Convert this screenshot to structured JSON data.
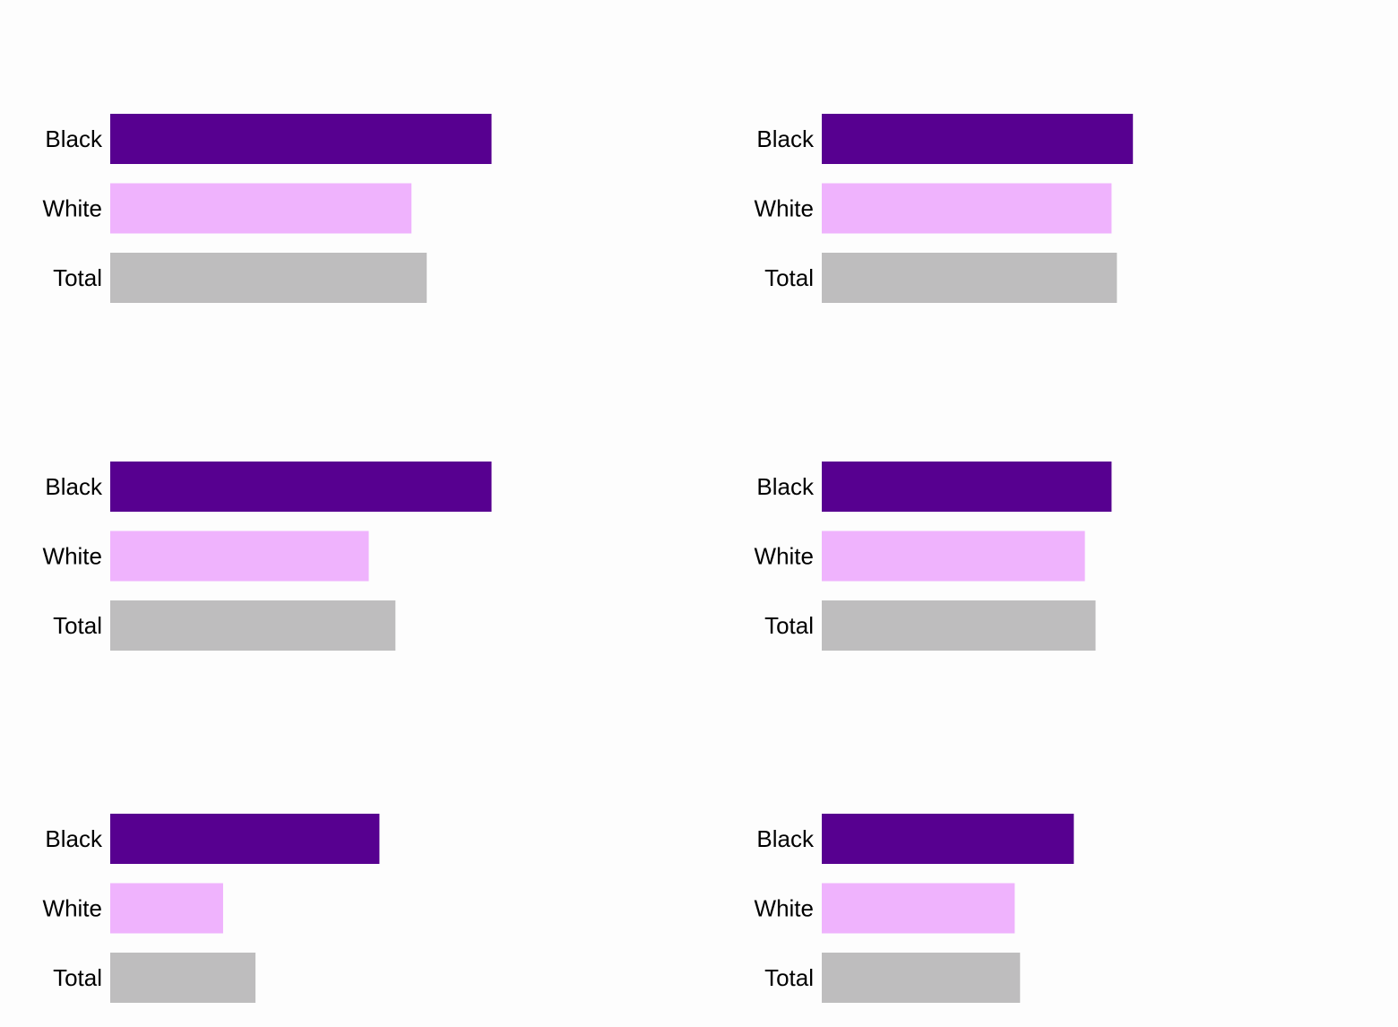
{
  "colors": {
    "background": "#fdfdfd",
    "Black": "#570090",
    "White": "#efb3fd",
    "Total": "#bebdbe"
  },
  "chart_data": [
    {
      "type": "bar",
      "orientation": "horizontal",
      "categories": [
        "Black",
        "White",
        "Total"
      ],
      "values": [
        100,
        79,
        83
      ],
      "xlim": [
        0,
        100
      ],
      "grid": false,
      "legend": "none"
    },
    {
      "type": "bar",
      "orientation": "horizontal",
      "categories": [
        "Black",
        "White",
        "Total"
      ],
      "values": [
        81.6,
        76,
        77.4
      ],
      "xlim": [
        0,
        100
      ],
      "grid": false,
      "legend": "none"
    },
    {
      "type": "bar",
      "orientation": "horizontal",
      "categories": [
        "Black",
        "White",
        "Total"
      ],
      "values": [
        100,
        67.8,
        74.8
      ],
      "xlim": [
        0,
        100
      ],
      "grid": false,
      "legend": "none"
    },
    {
      "type": "bar",
      "orientation": "horizontal",
      "categories": [
        "Black",
        "White",
        "Total"
      ],
      "values": [
        76,
        69,
        71.8
      ],
      "xlim": [
        0,
        100
      ],
      "grid": false,
      "legend": "none"
    },
    {
      "type": "bar",
      "orientation": "horizontal",
      "categories": [
        "Black",
        "White",
        "Total"
      ],
      "values": [
        70.6,
        29.6,
        38.1
      ],
      "xlim": [
        0,
        100
      ],
      "grid": false,
      "legend": "none"
    },
    {
      "type": "bar",
      "orientation": "horizontal",
      "categories": [
        "Black",
        "White",
        "Total"
      ],
      "values": [
        66.1,
        50.6,
        52
      ],
      "xlim": [
        0,
        100
      ],
      "grid": false,
      "legend": "none"
    }
  ]
}
